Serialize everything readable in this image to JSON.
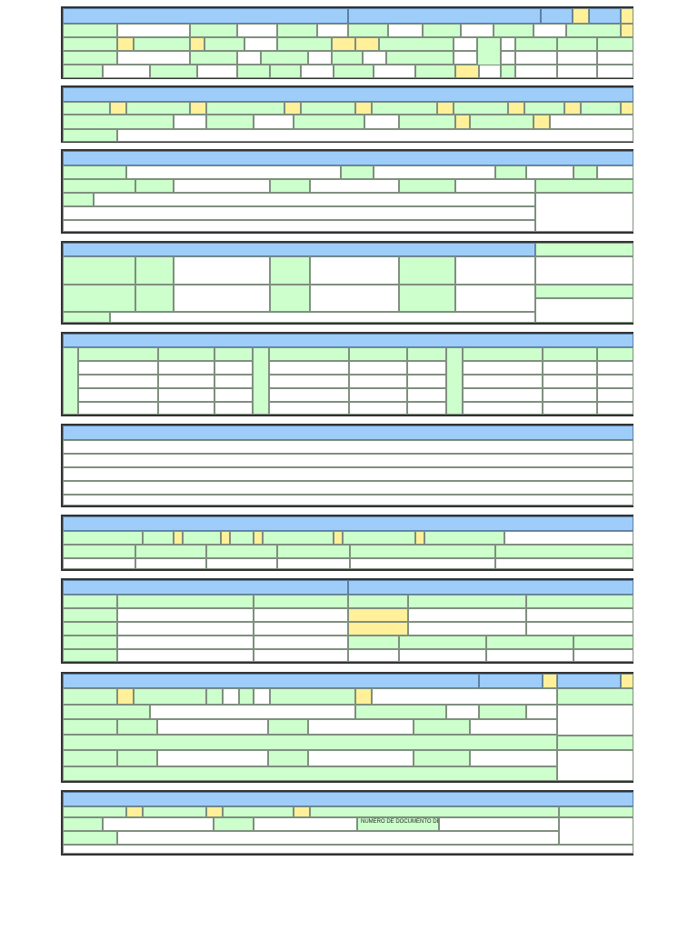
{
  "form": {
    "section10": {
      "doc_number_label": "NUMERO DE DOCUMENTO DE"
    }
  },
  "colors": {
    "header": "#9fcdfa",
    "label_cell": "#ccffcc",
    "checkbox_cell": "#fff099",
    "value_cell": "#ffffff",
    "border": "#333333"
  }
}
